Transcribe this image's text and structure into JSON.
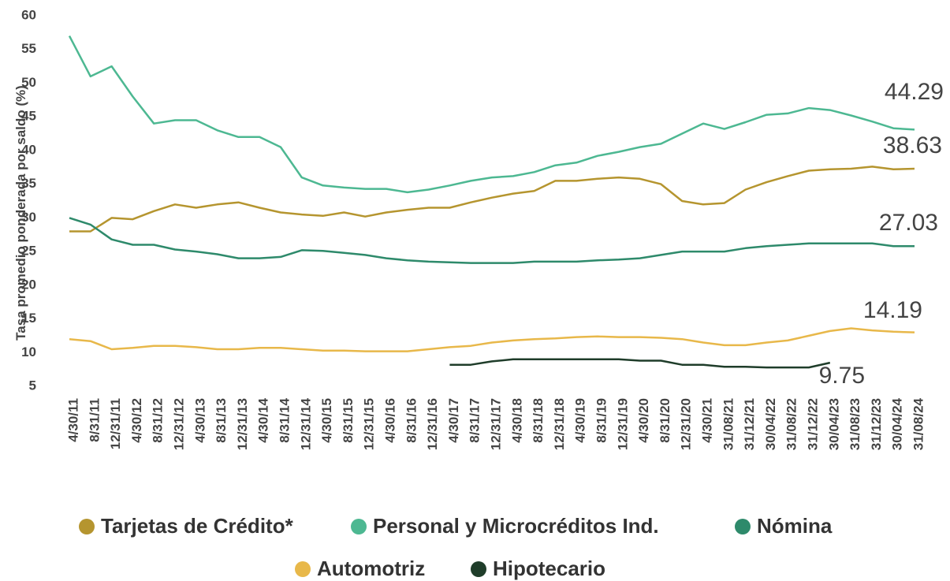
{
  "chart_data": {
    "type": "line",
    "y_label": "Tasa promedio ponderada por saldo (%)",
    "categories": [
      "4/30/11",
      "8/31/11",
      "12/31/11",
      "4/30/12",
      "8/31/12",
      "12/31/12",
      "4/30/13",
      "8/31/13",
      "12/31/13",
      "4/30/14",
      "8/31/14",
      "12/31/14",
      "4/30/15",
      "8/31/15",
      "12/31/15",
      "4/30/16",
      "8/31/16",
      "12/31/16",
      "4/30/17",
      "8/31/17",
      "12/31/17",
      "4/30/18",
      "8/31/18",
      "12/31/18",
      "4/30/19",
      "8/31/19",
      "12/31/19",
      "4/30/20",
      "8/31/20",
      "12/31/20",
      "4/30/21",
      "31/08/21",
      "31/12/21",
      "30/04/22",
      "31/08/22",
      "31/12/22",
      "30/04/23",
      "31/08/23",
      "31/12/23",
      "30/04/24",
      "31/08/24"
    ],
    "series": [
      {
        "name": "Tarjetas de Crédito*",
        "color": "#b5952f",
        "annotation": "38.63",
        "values": [
          28,
          28,
          30,
          29.8,
          31,
          32,
          31.5,
          32,
          32.3,
          31.5,
          30.8,
          30.5,
          30.3,
          30.8,
          30.2,
          30.8,
          31.2,
          31.5,
          31.5,
          32.3,
          33,
          33.6,
          34,
          35.5,
          35.5,
          35.8,
          36,
          35.8,
          35,
          32.5,
          32,
          32.2,
          34.2,
          35.3,
          36.2,
          37,
          37.2,
          37.3,
          37.6,
          37.2,
          37.3
        ]
      },
      {
        "name": "Personal y Microcréditos Ind.",
        "color": "#4db892",
        "annotation": "44.29",
        "values": [
          57,
          51,
          52.5,
          48,
          44,
          44.5,
          44.5,
          43,
          42,
          42,
          40.5,
          36,
          34.8,
          34.5,
          34.3,
          34.3,
          33.8,
          34.2,
          34.8,
          35.5,
          36,
          36.2,
          36.8,
          37.8,
          38.2,
          39.2,
          39.8,
          40.5,
          41,
          42.5,
          44,
          43.2,
          44.2,
          45.3,
          45.5,
          46.3,
          46,
          45.2,
          44.3,
          43.3,
          43.1
        ]
      },
      {
        "name": "Nómina",
        "color": "#2e8a6b",
        "annotation": "27.03",
        "values": [
          30,
          29,
          26.8,
          26,
          26,
          25.3,
          25,
          24.6,
          24,
          24,
          24.2,
          25.2,
          25.1,
          24.8,
          24.5,
          24,
          23.7,
          23.5,
          23.4,
          23.3,
          23.3,
          23.3,
          23.5,
          23.5,
          23.5,
          23.7,
          23.8,
          24,
          24.5,
          25,
          25,
          25,
          25.5,
          25.8,
          26,
          26.2,
          26.2,
          26.2,
          26.2,
          25.8,
          25.8
        ]
      },
      {
        "name": "Automotriz",
        "color": "#e8b84a",
        "annotation": "14.19",
        "values": [
          12,
          11.7,
          10.5,
          10.7,
          11,
          11,
          10.8,
          10.5,
          10.5,
          10.7,
          10.7,
          10.5,
          10.3,
          10.3,
          10.2,
          10.2,
          10.2,
          10.5,
          10.8,
          11,
          11.5,
          11.8,
          12,
          12.1,
          12.3,
          12.4,
          12.3,
          12.3,
          12.2,
          12,
          11.5,
          11.1,
          11.1,
          11.5,
          11.8,
          12.5,
          13.2,
          13.6,
          13.3,
          13.1,
          13
        ]
      },
      {
        "name": "Hipotecario",
        "color": "#1f3d2a",
        "annotation": "9.75",
        "values": [
          null,
          null,
          null,
          null,
          null,
          null,
          null,
          null,
          null,
          null,
          null,
          null,
          null,
          null,
          null,
          null,
          null,
          null,
          8.2,
          8.2,
          8.7,
          9,
          9,
          9,
          9,
          9,
          9,
          8.8,
          8.8,
          8.2,
          8.2,
          7.9,
          7.9,
          7.8,
          7.8,
          7.8,
          8.5,
          null,
          null,
          null,
          null
        ]
      }
    ],
    "ylim": [
      5,
      60
    ],
    "yticks": [
      5,
      10,
      15,
      20,
      25,
      30,
      35,
      40,
      45,
      50,
      55,
      60
    ],
    "grid": false
  }
}
